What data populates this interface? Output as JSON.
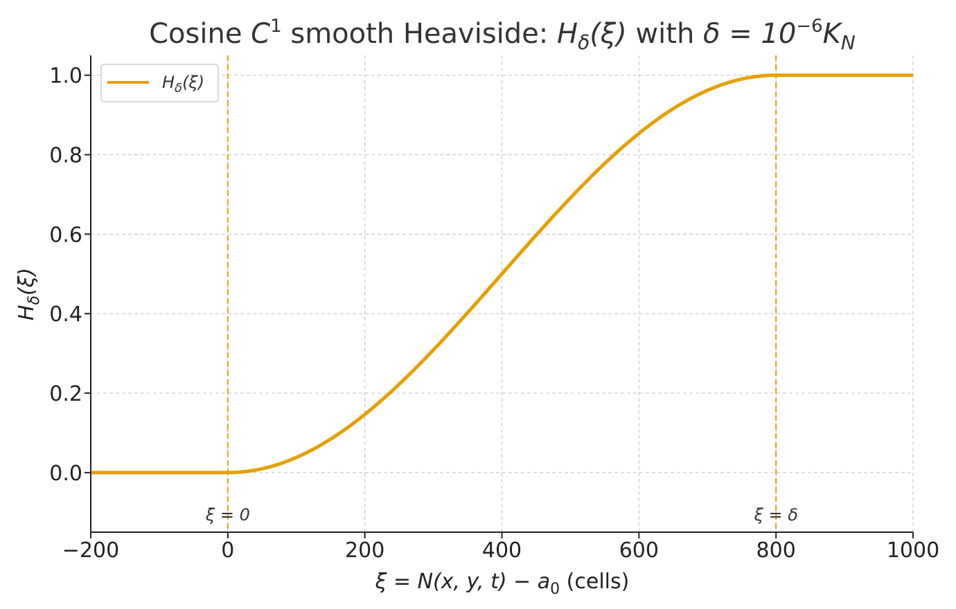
{
  "chart_data": {
    "type": "line",
    "title": {
      "pre": "Cosine ",
      "c": "C",
      "c_sup": "1",
      "mid": " smooth Heaviside: ",
      "h": "H",
      "h_sub": "δ",
      "arg": "(ξ)",
      "with": " with ",
      "delta_eq": "δ = 10",
      "exp": "−6",
      "k": "K",
      "k_sub": "N"
    },
    "xlabel": {
      "expr_a": "ξ = N(x, y, t) − a",
      "sub": "0",
      "unit": "  (cells)"
    },
    "ylabel": {
      "h": "H",
      "sub": "δ",
      "arg": "(ξ)"
    },
    "xlim": [
      -200,
      1000
    ],
    "ylim": [
      -0.15,
      1.05
    ],
    "xticks": [
      {
        "value": -200,
        "label": "−200"
      },
      {
        "value": 0,
        "label": "0"
      },
      {
        "value": 200,
        "label": "200"
      },
      {
        "value": 400,
        "label": "400"
      },
      {
        "value": 600,
        "label": "600"
      },
      {
        "value": 800,
        "label": "800"
      },
      {
        "value": 1000,
        "label": "1000"
      }
    ],
    "yticks": [
      {
        "value": 0.0,
        "label": "0.0"
      },
      {
        "value": 0.2,
        "label": "0.2"
      },
      {
        "value": 0.4,
        "label": "0.4"
      },
      {
        "value": 0.6,
        "label": "0.6"
      },
      {
        "value": 0.8,
        "label": "0.8"
      },
      {
        "value": 1.0,
        "label": "1.0"
      }
    ],
    "grid": true,
    "legend_position": "upper-left",
    "series": [
      {
        "name": {
          "h": "H",
          "sub": "δ",
          "arg": "(ξ)"
        },
        "color": "#E69F00",
        "x": [
          -200,
          -100,
          0,
          50,
          100,
          150,
          200,
          250,
          300,
          350,
          400,
          450,
          500,
          550,
          600,
          650,
          700,
          750,
          800,
          900,
          1000
        ],
        "y": [
          0,
          0,
          0,
          0.0096,
          0.0381,
          0.0843,
          0.1464,
          0.2222,
          0.3087,
          0.4025,
          0.5,
          0.5975,
          0.6913,
          0.7778,
          0.8536,
          0.9157,
          0.9619,
          0.9904,
          1.0,
          1.0,
          1.0
        ]
      }
    ],
    "vlines": [
      {
        "x": 0,
        "label": "ξ = 0",
        "color": "#E69F00"
      },
      {
        "x": 800,
        "label": "ξ = δ",
        "color": "#E69F00"
      }
    ]
  }
}
